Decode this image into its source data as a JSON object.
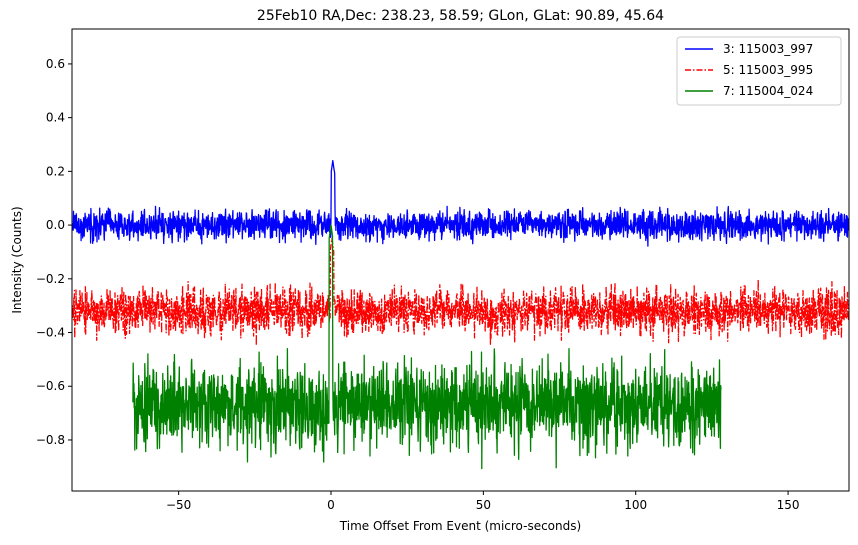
{
  "chart_data": {
    "type": "line",
    "title": "25Feb10 RA,Dec:  238.23,  58.59; GLon, GLat:   90.89,  45.64",
    "xlabel": "Time Offset From Event (micro-seconds)",
    "ylabel": "Intensity (Counts)",
    "xlim": [
      -85,
      170
    ],
    "ylim": [
      -0.99,
      0.73
    ],
    "xticks": [
      -50,
      0,
      50,
      100,
      150
    ],
    "xtick_labels": [
      "−50",
      "0",
      "50",
      "100",
      "150"
    ],
    "yticks": [
      -0.8,
      -0.6,
      -0.4,
      -0.2,
      0.0,
      0.2,
      0.4,
      0.6
    ],
    "ytick_labels": [
      "−0.8",
      "−0.6",
      "−0.4",
      "−0.2",
      "0.0",
      "0.2",
      "0.4",
      "0.6"
    ],
    "legend_position": "top-right",
    "series": [
      {
        "name": "3: 115003_997",
        "color": "#0000ff",
        "linestyle": "solid",
        "x_range": [
          -85,
          170
        ],
        "baseline": 0.0,
        "noise_range": [
          -0.09,
          0.07
        ],
        "spike": {
          "x": 0.6,
          "peak": 0.24
        }
      },
      {
        "name": "5: 115003_995",
        "color": "#ff0000",
        "linestyle": "dashdot",
        "x_range": [
          -85,
          170
        ],
        "baseline": -0.32,
        "noise_range": [
          -0.45,
          -0.2
        ],
        "spike": {
          "x": 0.3,
          "peak": -0.05
        }
      },
      {
        "name": "7: 115004_024",
        "color": "#008000",
        "linestyle": "solid",
        "x_range": [
          -65,
          128
        ],
        "baseline": -0.67,
        "noise_range": [
          -0.92,
          -0.46
        ],
        "spike": {
          "x": 0.0,
          "peak": 0.0
        }
      }
    ]
  }
}
